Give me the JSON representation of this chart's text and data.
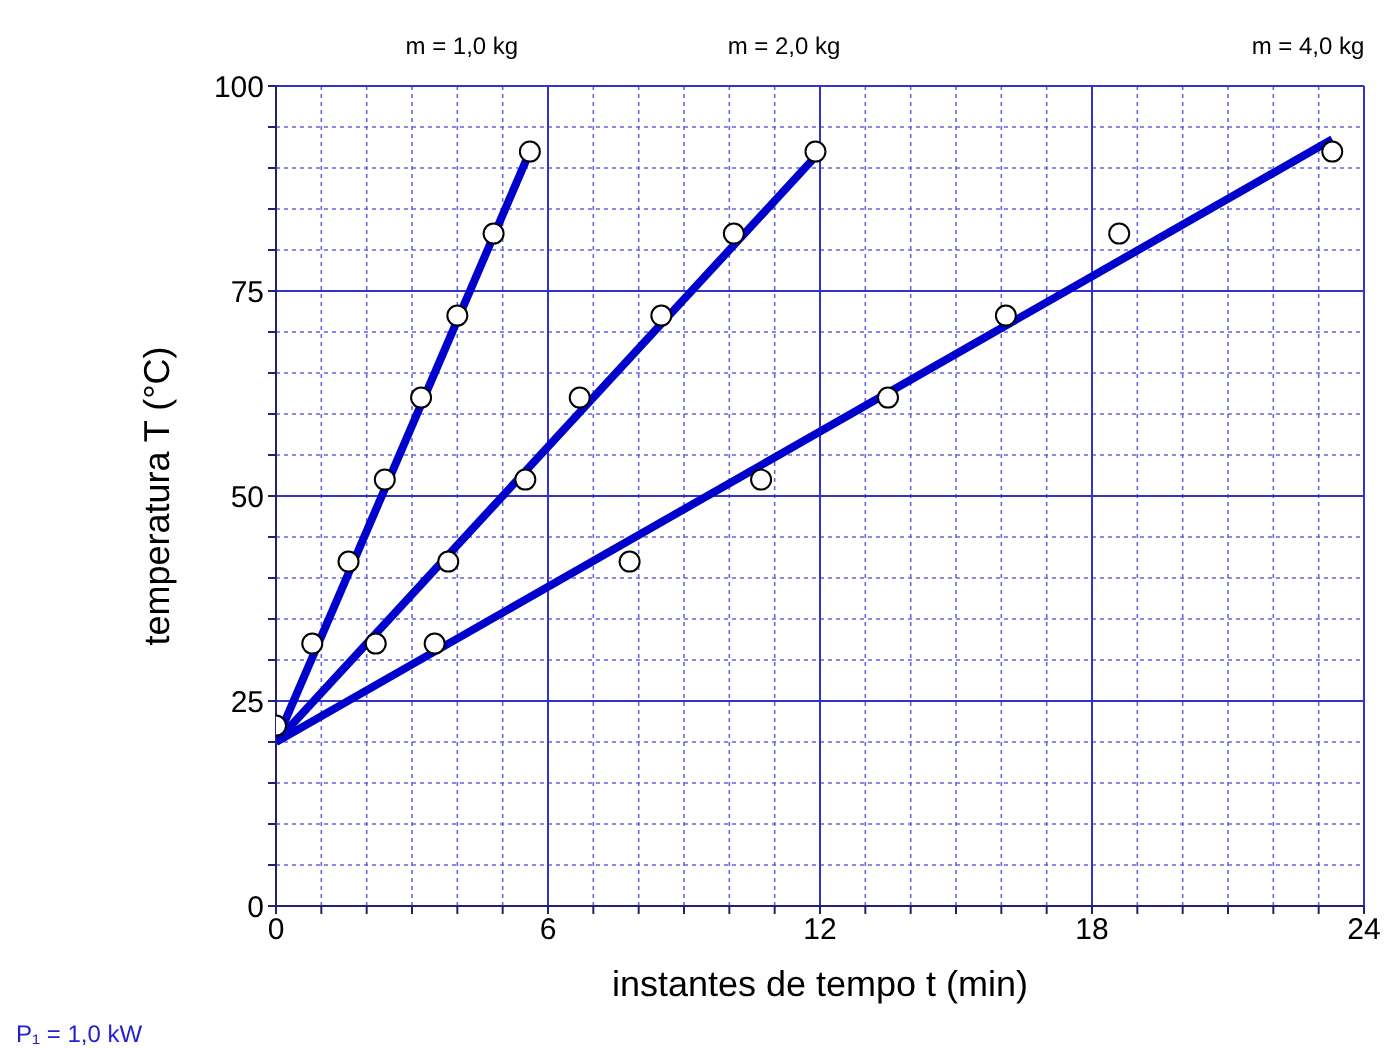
{
  "chart_data": {
    "type": "scatter",
    "xlabel": "instantes de tempo t (min)",
    "ylabel": "temperatura T (°C)",
    "xlim": [
      0,
      24
    ],
    "ylim": [
      0,
      100
    ],
    "xticks": [
      0,
      {
        "value": 1,
        "label": null
      },
      {
        "value": 2,
        "label": null
      },
      {
        "value": 3,
        "label": null
      },
      {
        "value": 4,
        "label": null
      },
      {
        "value": 5,
        "label": null
      },
      6,
      {
        "value": 7,
        "label": null
      },
      {
        "value": 8,
        "label": null
      },
      {
        "value": 9,
        "label": null
      },
      {
        "value": 10,
        "label": null
      },
      {
        "value": 11,
        "label": null
      },
      12,
      {
        "value": 13,
        "label": null
      },
      {
        "value": 14,
        "label": null
      },
      {
        "value": 15,
        "label": null
      },
      {
        "value": 16,
        "label": null
      },
      {
        "value": 17,
        "label": null
      },
      18,
      {
        "value": 19,
        "label": null
      },
      {
        "value": 20,
        "label": null
      },
      {
        "value": 21,
        "label": null
      },
      {
        "value": 22,
        "label": null
      },
      {
        "value": 23,
        "label": null
      },
      24
    ],
    "yticks": [
      0,
      {
        "value": 5,
        "label": null
      },
      {
        "value": 10,
        "label": null
      },
      {
        "value": 15,
        "label": null
      },
      {
        "value": 20,
        "label": null
      },
      25,
      {
        "value": 30,
        "label": null
      },
      {
        "value": 35,
        "label": null
      },
      {
        "value": 40,
        "label": null
      },
      {
        "value": 45,
        "label": null
      },
      50,
      {
        "value": 55,
        "label": null
      },
      {
        "value": 60,
        "label": null
      },
      {
        "value": 65,
        "label": null
      },
      {
        "value": 70,
        "label": null
      },
      75,
      {
        "value": 80,
        "label": null
      },
      {
        "value": 85,
        "label": null
      },
      {
        "value": 90,
        "label": null
      },
      {
        "value": 95,
        "label": null
      },
      100
    ],
    "grid": true,
    "series": [
      {
        "type": "line",
        "color": "#0000cc",
        "marker": "none",
        "x": [
          0,
          5.6
        ],
        "values": [
          20,
          92
        ]
      },
      {
        "type": "line",
        "color": "#0000cc",
        "marker": "none",
        "x": [
          0,
          12
        ],
        "values": [
          20,
          92
        ]
      },
      {
        "type": "line",
        "color": "#0000cc",
        "marker": "none",
        "x": [
          0,
          23.3
        ],
        "values": [
          20,
          93.5
        ]
      },
      {
        "color": "#000000",
        "marker": "circle",
        "x": [
          0,
          0.8,
          1.6,
          2.4,
          3.2,
          4.0,
          4.8,
          5.6
        ],
        "values": [
          22,
          32,
          42,
          52,
          62,
          72,
          82,
          92
        ]
      },
      {
        "color": "#000000",
        "marker": "circle",
        "x": [
          2.2,
          3.8,
          5.5,
          6.7,
          8.5,
          10.1,
          11.9
        ],
        "values": [
          32,
          42,
          52,
          62,
          72,
          82,
          92
        ]
      },
      {
        "color": "#000000",
        "marker": "circle",
        "x": [
          3.5,
          7.8,
          10.7,
          13.5,
          16.1,
          18.6,
          23.3
        ],
        "values": [
          32,
          42,
          52,
          62,
          72,
          82,
          92
        ]
      }
    ],
    "annotations": [
      "m = 1,0 kg",
      "m = 2,0 kg",
      "m = 4,0 kg",
      "P₁ = 1,0 kW"
    ]
  }
}
